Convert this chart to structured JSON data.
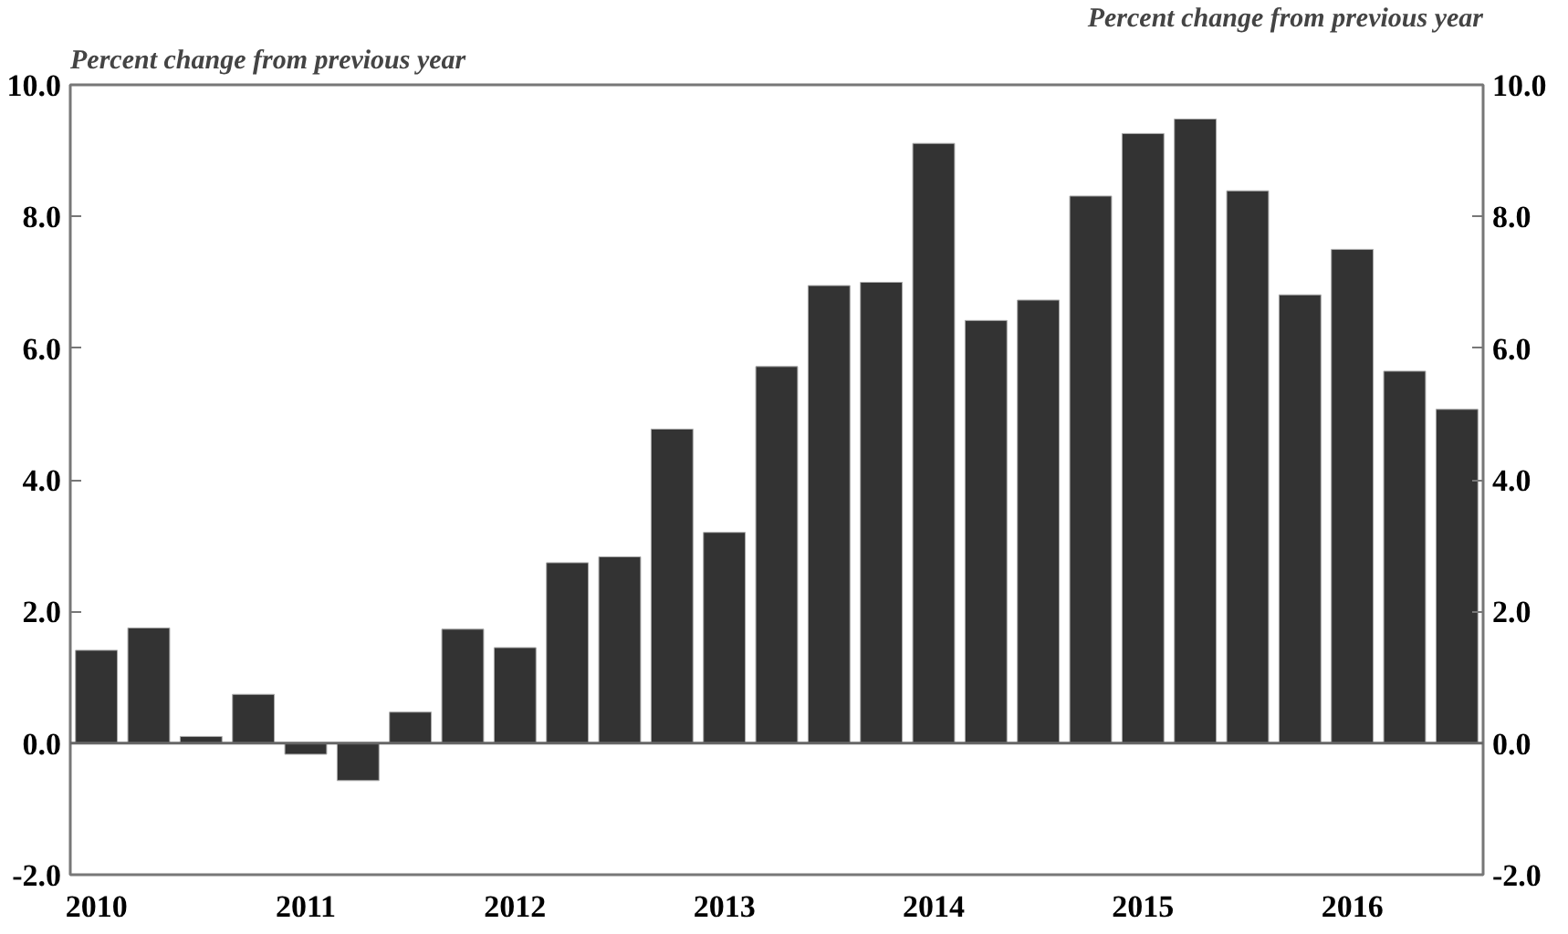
{
  "chart_data": {
    "type": "bar",
    "ylabel": "Percent change from previous year",
    "y2label": "Percent change from previous year",
    "categories": [
      "2010",
      null,
      null,
      null,
      "2011",
      null,
      null,
      null,
      "2012",
      null,
      null,
      null,
      "2013",
      null,
      null,
      null,
      "2014",
      null,
      null,
      null,
      "2015",
      null,
      null,
      null,
      "2016",
      null,
      null
    ],
    "values": [
      1.41,
      1.75,
      0.1,
      0.74,
      -0.17,
      -0.57,
      0.47,
      1.73,
      1.45,
      2.74,
      2.83,
      4.77,
      3.2,
      5.72,
      6.95,
      7.0,
      9.11,
      6.42,
      6.73,
      8.31,
      9.26,
      9.48,
      8.39,
      6.81,
      7.5,
      5.65,
      5.07
    ],
    "color": "#333333",
    "ylim": [
      -2,
      10
    ],
    "yticks": [
      {
        "value": -2,
        "label": "-2.0"
      },
      {
        "value": 0,
        "label": "0.0"
      },
      {
        "value": 2,
        "label": "2.0"
      },
      {
        "value": 4,
        "label": "4.0"
      },
      {
        "value": 6,
        "label": "6.0"
      },
      {
        "value": 8,
        "label": "8.0"
      },
      {
        "value": 10,
        "label": "10.0"
      }
    ],
    "y2lim": [
      -2,
      10
    ],
    "y2ticks": [
      {
        "value": -2,
        "label": "-2.0"
      },
      {
        "value": 0,
        "label": "0.0"
      },
      {
        "value": 2,
        "label": "2.0"
      },
      {
        "value": 4,
        "label": "4.0"
      },
      {
        "value": 6,
        "label": "6.0"
      },
      {
        "value": 8,
        "label": "8.0"
      },
      {
        "value": 10,
        "label": "10.0"
      }
    ],
    "ref_lines": [
      {
        "axis": "y",
        "value": 0,
        "color": "#666666"
      }
    ],
    "grid": false
  }
}
